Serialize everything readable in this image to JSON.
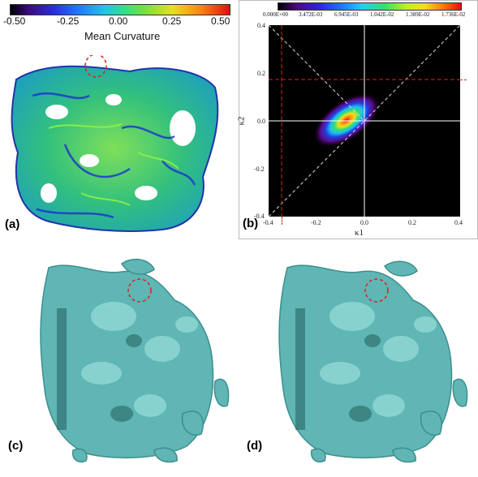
{
  "panel_a": {
    "label": "(a)",
    "colorbar": {
      "title": "Mean Curvature",
      "ticks": [
        "-0.50",
        "-0.25",
        "0.00",
        "0.25",
        "0.50"
      ]
    }
  },
  "panel_b": {
    "label": "(b)",
    "colorbar_ticks": [
      "0.000E+00",
      "3.472E-03",
      "6.945E-03",
      "1.042E-02",
      "1.389E-02",
      "1.736E-02"
    ],
    "xlabel": "κ1",
    "ylabel": "κ2",
    "x_ticks": [
      "-0.4",
      "-0.2",
      "0.0",
      "0.2",
      "0.4"
    ],
    "y_ticks": [
      "0.4",
      "0.2",
      "0.0",
      "-0.2",
      "-0.4"
    ]
  },
  "panel_c": {
    "label": "(c)"
  },
  "panel_d": {
    "label": "(d)"
  },
  "colors": {
    "surface_teal": "#5fb6b4",
    "curvature_green": "#37c57a",
    "highlight_red": "#e02020"
  }
}
